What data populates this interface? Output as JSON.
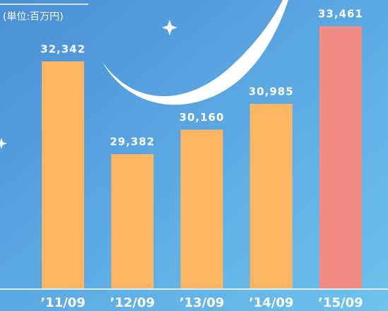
{
  "chart_data": {
    "type": "bar",
    "unit": "(単位:百万円)",
    "categories": [
      "’11/09",
      "’12/09",
      "’13/09",
      "’14/09",
      "’15/09"
    ],
    "values": [
      32342,
      29382,
      30160,
      30985,
      33461
    ],
    "value_labels": [
      "32,342",
      "29,382",
      "30,160",
      "30,985",
      "33,461"
    ],
    "colors": [
      "#fbb663",
      "#fbb663",
      "#fbb663",
      "#fbb663",
      "#f28d85"
    ],
    "ylim": [
      25100,
      34300
    ]
  }
}
